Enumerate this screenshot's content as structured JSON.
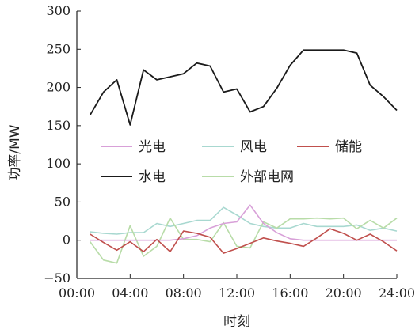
{
  "chart_data": {
    "type": "line",
    "xlabel": "时刻",
    "ylabel": "功率/MW",
    "x": [
      1,
      2,
      3,
      4,
      5,
      6,
      7,
      8,
      9,
      10,
      11,
      12,
      13,
      14,
      15,
      16,
      17,
      18,
      19,
      20,
      21,
      22,
      23,
      24
    ],
    "xlim": [
      0,
      24
    ],
    "ylim": [
      -50,
      300
    ],
    "xticks": [
      0,
      4,
      8,
      12,
      16,
      20,
      24
    ],
    "xtick_labels": [
      "00:00",
      "04:00",
      "08:00",
      "12:00",
      "16:00",
      "20:00",
      "24:00"
    ],
    "yticks": [
      -50,
      0,
      50,
      100,
      150,
      200,
      250,
      300
    ],
    "ytick_labels": [
      "−50",
      "0",
      "50",
      "100",
      "150",
      "200",
      "250",
      "300"
    ],
    "grid": false,
    "legend": {
      "placement": "center",
      "columns": 3
    },
    "series": [
      {
        "name": "光电",
        "color": "#d8a0d8",
        "values": [
          0,
          0,
          0,
          0,
          0,
          0,
          0,
          2,
          6,
          16,
          22,
          24,
          46,
          22,
          10,
          2,
          0,
          0,
          0,
          0,
          0,
          0,
          0,
          0
        ]
      },
      {
        "name": "风电",
        "color": "#a8d8d0",
        "values": [
          11,
          9,
          8,
          10,
          10,
          22,
          18,
          22,
          26,
          26,
          43,
          33,
          22,
          18,
          16,
          16,
          22,
          18,
          18,
          18,
          20,
          13,
          16,
          12
        ]
      },
      {
        "name": "储能",
        "color": "#c0504d",
        "values": [
          8,
          -3,
          -13,
          -2,
          -15,
          1,
          -15,
          12,
          9,
          4,
          -17,
          -11,
          -4,
          3,
          -1,
          -4,
          -8,
          3,
          15,
          9,
          0,
          8,
          -2,
          -14
        ]
      },
      {
        "name": "水电",
        "color": "#1a1a1a",
        "values": [
          164,
          194,
          210,
          151,
          223,
          210,
          214,
          218,
          232,
          228,
          194,
          198,
          168,
          175,
          199,
          229,
          249,
          249,
          249,
          249,
          245,
          203,
          188,
          170
        ]
      },
      {
        "name": "外部电网",
        "color": "#b8dca8",
        "values": [
          -2,
          -26,
          -30,
          19,
          -21,
          -8,
          29,
          1,
          1,
          -2,
          23,
          -8,
          -10,
          24,
          16,
          28,
          28,
          29,
          28,
          29,
          15,
          26,
          16,
          29
        ]
      }
    ]
  }
}
